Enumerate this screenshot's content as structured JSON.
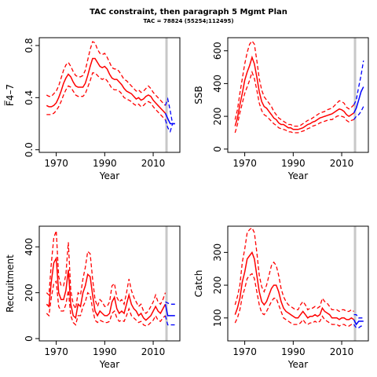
{
  "title": "TAC constraint, then paragraph 5 Mgmt Plan",
  "subtitle": "TAC = 78824 (55254;112495)",
  "colors": {
    "history": "#ff0000",
    "projection": "#0000ff",
    "assessment_line": "#c8c8c8"
  },
  "chart_data": [
    {
      "type": "line",
      "id": "f",
      "xlabel": "Year",
      "ylabel": "F̅4–7",
      "xlim": [
        1963,
        2021
      ],
      "ylim": [
        -0.02,
        0.86
      ],
      "xticks": [
        1970,
        1990,
        2010
      ],
      "yticks": [
        0.0,
        0.4,
        0.8
      ],
      "ytick_labels": [
        "0.0",
        "0.4",
        "0.8"
      ],
      "vline_year": 2015.5,
      "history": {
        "x": [
          1966,
          1967,
          1968,
          1969,
          1970,
          1971,
          1972,
          1973,
          1974,
          1975,
          1976,
          1977,
          1978,
          1979,
          1980,
          1981,
          1982,
          1983,
          1984,
          1985,
          1986,
          1987,
          1988,
          1989,
          1990,
          1991,
          1992,
          1993,
          1994,
          1995,
          1996,
          1997,
          1998,
          1999,
          2000,
          2001,
          2002,
          2003,
          2004,
          2005,
          2006,
          2007,
          2008,
          2009,
          2010,
          2011,
          2012,
          2013,
          2014,
          2015
        ],
        "median": [
          0.34,
          0.33,
          0.33,
          0.34,
          0.36,
          0.4,
          0.45,
          0.51,
          0.55,
          0.58,
          0.56,
          0.52,
          0.49,
          0.48,
          0.48,
          0.48,
          0.51,
          0.57,
          0.64,
          0.7,
          0.7,
          0.67,
          0.64,
          0.63,
          0.64,
          0.62,
          0.58,
          0.55,
          0.54,
          0.54,
          0.52,
          0.5,
          0.47,
          0.45,
          0.44,
          0.43,
          0.41,
          0.39,
          0.4,
          0.38,
          0.39,
          0.41,
          0.42,
          0.41,
          0.38,
          0.36,
          0.34,
          0.32,
          0.3,
          0.28
        ],
        "upper": [
          0.42,
          0.41,
          0.41,
          0.43,
          0.45,
          0.49,
          0.55,
          0.61,
          0.65,
          0.67,
          0.64,
          0.6,
          0.57,
          0.56,
          0.56,
          0.57,
          0.61,
          0.69,
          0.77,
          0.83,
          0.82,
          0.77,
          0.74,
          0.73,
          0.74,
          0.71,
          0.67,
          0.63,
          0.62,
          0.62,
          0.6,
          0.57,
          0.54,
          0.53,
          0.51,
          0.49,
          0.47,
          0.45,
          0.46,
          0.44,
          0.45,
          0.47,
          0.49,
          0.47,
          0.44,
          0.42,
          0.4,
          0.38,
          0.36,
          0.34
        ],
        "lower": [
          0.27,
          0.27,
          0.27,
          0.28,
          0.3,
          0.33,
          0.37,
          0.42,
          0.46,
          0.49,
          0.48,
          0.45,
          0.42,
          0.41,
          0.41,
          0.41,
          0.43,
          0.48,
          0.53,
          0.59,
          0.59,
          0.57,
          0.55,
          0.54,
          0.55,
          0.53,
          0.5,
          0.47,
          0.46,
          0.46,
          0.45,
          0.43,
          0.4,
          0.39,
          0.38,
          0.37,
          0.35,
          0.34,
          0.35,
          0.33,
          0.34,
          0.36,
          0.37,
          0.36,
          0.33,
          0.31,
          0.29,
          0.27,
          0.25,
          0.23
        ]
      },
      "projection": {
        "x": [
          2015,
          2016,
          2017,
          2018,
          2019
        ],
        "median": [
          0.28,
          0.24,
          0.2,
          0.2,
          0.2
        ],
        "upper": [
          0.34,
          0.39,
          0.3,
          0.2,
          0.2
        ],
        "lower": [
          0.23,
          0.17,
          0.14,
          0.2,
          0.2
        ]
      }
    },
    {
      "type": "line",
      "id": "ssb",
      "xlabel": "Year",
      "ylabel": "SSB",
      "xlim": [
        1963,
        2021
      ],
      "ylim": [
        -20,
        680
      ],
      "xticks": [
        1970,
        1990,
        2010
      ],
      "yticks": [
        0,
        200,
        400,
        600
      ],
      "ytick_labels": [
        "0",
        "200",
        "400",
        "600"
      ],
      "vline_year": 2015.5,
      "history": {
        "x": [
          1966,
          1967,
          1968,
          1969,
          1970,
          1971,
          1972,
          1973,
          1974,
          1975,
          1976,
          1977,
          1978,
          1979,
          1980,
          1981,
          1982,
          1983,
          1984,
          1985,
          1986,
          1987,
          1988,
          1989,
          1990,
          1991,
          1992,
          1993,
          1994,
          1995,
          1996,
          1997,
          1998,
          1999,
          2000,
          2001,
          2002,
          2003,
          2004,
          2005,
          2006,
          2007,
          2008,
          2009,
          2010,
          2011,
          2012,
          2013,
          2014,
          2015
        ],
        "median": [
          140,
          190,
          270,
          340,
          420,
          470,
          510,
          560,
          520,
          440,
          350,
          290,
          260,
          250,
          230,
          210,
          190,
          180,
          160,
          150,
          150,
          140,
          130,
          130,
          120,
          120,
          120,
          125,
          130,
          140,
          150,
          155,
          165,
          170,
          180,
          190,
          195,
          200,
          205,
          210,
          215,
          225,
          235,
          245,
          240,
          230,
          210,
          200,
          210,
          220
        ],
        "upper": [
          180,
          240,
          340,
          430,
          520,
          590,
          640,
          660,
          640,
          540,
          430,
          360,
          320,
          300,
          280,
          260,
          230,
          210,
          190,
          180,
          170,
          160,
          150,
          150,
          140,
          140,
          140,
          145,
          155,
          165,
          175,
          180,
          190,
          200,
          210,
          220,
          225,
          230,
          240,
          245,
          250,
          265,
          280,
          295,
          290,
          280,
          255,
          245,
          255,
          270
        ],
        "lower": [
          100,
          150,
          220,
          280,
          340,
          380,
          420,
          470,
          430,
          360,
          280,
          235,
          210,
          200,
          185,
          170,
          155,
          145,
          130,
          125,
          120,
          115,
          105,
          105,
          100,
          100,
          100,
          105,
          110,
          115,
          125,
          130,
          140,
          145,
          150,
          160,
          165,
          170,
          175,
          180,
          180,
          190,
          200,
          205,
          200,
          195,
          175,
          165,
          175,
          180
        ]
      },
      "projection": {
        "x": [
          2015,
          2016,
          2017,
          2018,
          2019
        ],
        "median": [
          220,
          250,
          300,
          350,
          380
        ],
        "upper": [
          270,
          300,
          380,
          450,
          540
        ],
        "lower": [
          180,
          200,
          210,
          230,
          260
        ]
      }
    },
    {
      "type": "line",
      "id": "recruitment",
      "xlabel": "Year",
      "ylabel": "Recruitment",
      "xlim": [
        1963,
        2021
      ],
      "ylim": [
        -10,
        490
      ],
      "xticks": [
        1970,
        1990,
        2010
      ],
      "yticks": [
        0,
        200,
        400
      ],
      "ytick_labels": [
        "0",
        "200",
        "400"
      ],
      "vline_year": 2015.5,
      "history": {
        "x": [
          1966,
          1967,
          1968,
          1969,
          1970,
          1971,
          1972,
          1973,
          1974,
          1975,
          1976,
          1977,
          1978,
          1979,
          1980,
          1981,
          1982,
          1983,
          1984,
          1985,
          1986,
          1987,
          1988,
          1989,
          1990,
          1991,
          1992,
          1993,
          1994,
          1995,
          1996,
          1997,
          1998,
          1999,
          2000,
          2001,
          2002,
          2003,
          2004,
          2005,
          2006,
          2007,
          2008,
          2009,
          2010,
          2011,
          2012,
          2013,
          2014,
          2015
        ],
        "median": [
          150,
          140,
          250,
          330,
          350,
          200,
          170,
          170,
          210,
          300,
          150,
          100,
          90,
          150,
          140,
          200,
          230,
          280,
          270,
          190,
          120,
          100,
          120,
          110,
          100,
          100,
          110,
          160,
          180,
          130,
          110,
          120,
          110,
          150,
          190,
          150,
          130,
          120,
          100,
          110,
          90,
          80,
          90,
          100,
          120,
          140,
          120,
          110,
          130,
          150
        ],
        "upper": [
          200,
          190,
          330,
          440,
          470,
          270,
          230,
          230,
          280,
          420,
          210,
          150,
          130,
          200,
          190,
          260,
          310,
          380,
          370,
          260,
          170,
          140,
          170,
          160,
          140,
          140,
          160,
          230,
          240,
          180,
          160,
          170,
          150,
          200,
          260,
          210,
          180,
          160,
          140,
          150,
          120,
          110,
          120,
          140,
          160,
          190,
          160,
          150,
          170,
          200
        ],
        "lower": [
          110,
          100,
          180,
          240,
          250,
          140,
          120,
          120,
          150,
          210,
          100,
          70,
          60,
          100,
          100,
          140,
          160,
          200,
          190,
          130,
          80,
          70,
          80,
          75,
          70,
          70,
          75,
          110,
          120,
          90,
          75,
          80,
          75,
          100,
          130,
          100,
          90,
          80,
          70,
          75,
          60,
          55,
          60,
          70,
          80,
          100,
          80,
          75,
          90,
          100
        ]
      },
      "projection": {
        "x": [
          2015,
          2016,
          2017,
          2018,
          2019
        ],
        "median": [
          150,
          100,
          100,
          100,
          100
        ],
        "upper": [
          160,
          155,
          150,
          150,
          150
        ],
        "lower": [
          100,
          60,
          60,
          60,
          60
        ]
      }
    },
    {
      "type": "line",
      "id": "catch",
      "xlabel": "Year",
      "ylabel": "Catch",
      "xlim": [
        1963,
        2021
      ],
      "ylim": [
        30,
        380
      ],
      "xticks": [
        1970,
        1990,
        2010
      ],
      "yticks": [
        100,
        200,
        300
      ],
      "ytick_labels": [
        "100",
        "200",
        "300"
      ],
      "vline_year": 2015.5,
      "history": {
        "x": [
          1966,
          1967,
          1968,
          1969,
          1970,
          1971,
          1972,
          1973,
          1974,
          1975,
          1976,
          1977,
          1978,
          1979,
          1980,
          1981,
          1982,
          1983,
          1984,
          1985,
          1986,
          1987,
          1988,
          1989,
          1990,
          1991,
          1992,
          1993,
          1994,
          1995,
          1996,
          1997,
          1998,
          1999,
          2000,
          2001,
          2002,
          2003,
          2004,
          2005,
          2006,
          2007,
          2008,
          2009,
          2010,
          2011,
          2012,
          2013,
          2014,
          2015
        ],
        "median": [
          110,
          130,
          160,
          210,
          240,
          280,
          290,
          300,
          280,
          230,
          180,
          150,
          140,
          150,
          170,
          190,
          200,
          200,
          180,
          150,
          130,
          120,
          115,
          110,
          105,
          100,
          100,
          110,
          120,
          110,
          100,
          105,
          105,
          110,
          105,
          110,
          130,
          120,
          115,
          110,
          100,
          100,
          100,
          95,
          100,
          100,
          95,
          95,
          100,
          95
        ],
        "upper": [
          140,
          165,
          200,
          270,
          310,
          360,
          370,
          375,
          360,
          300,
          230,
          195,
          180,
          200,
          230,
          260,
          270,
          260,
          230,
          190,
          165,
          150,
          140,
          135,
          130,
          125,
          125,
          140,
          150,
          140,
          125,
          130,
          130,
          135,
          130,
          135,
          160,
          150,
          145,
          135,
          125,
          125,
          125,
          120,
          125,
          125,
          120,
          120,
          125,
          120
        ],
        "lower": [
          85,
          100,
          125,
          165,
          190,
          220,
          230,
          235,
          220,
          180,
          140,
          115,
          110,
          120,
          135,
          150,
          160,
          160,
          140,
          120,
          100,
          95,
          90,
          85,
          80,
          80,
          80,
          85,
          95,
          85,
          80,
          85,
          85,
          90,
          85,
          90,
          105,
          95,
          90,
          85,
          80,
          80,
          80,
          75,
          80,
          80,
          75,
          75,
          80,
          75
        ]
      },
      "projection": {
        "x": [
          2015,
          2016,
          2017,
          2018,
          2019
        ],
        "median": [
          95,
          80,
          90,
          90,
          90
        ],
        "upper": [
          110,
          110,
          100,
          100,
          100
        ],
        "lower": [
          80,
          70,
          70,
          75,
          75
        ]
      }
    }
  ]
}
